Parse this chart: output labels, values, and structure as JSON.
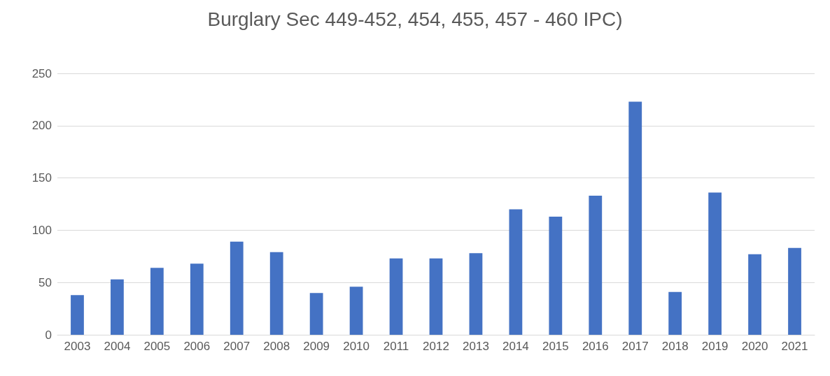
{
  "chart_data": {
    "type": "bar",
    "title": "Burglary Sec 449-452, 454, 455, 457 - 460 IPC)",
    "categories": [
      "2003",
      "2004",
      "2005",
      "2006",
      "2007",
      "2008",
      "2009",
      "2010",
      "2011",
      "2012",
      "2013",
      "2014",
      "2015",
      "2016",
      "2017",
      "2018",
      "2019",
      "2020",
      "2021"
    ],
    "values": [
      38,
      53,
      64,
      68,
      89,
      79,
      40,
      46,
      73,
      73,
      78,
      120,
      113,
      133,
      223,
      41,
      136,
      77,
      83
    ],
    "color": "#4472c4",
    "ylim": [
      0,
      250
    ],
    "yticks": [
      0,
      50,
      100,
      150,
      200,
      250
    ],
    "grid": "y"
  }
}
